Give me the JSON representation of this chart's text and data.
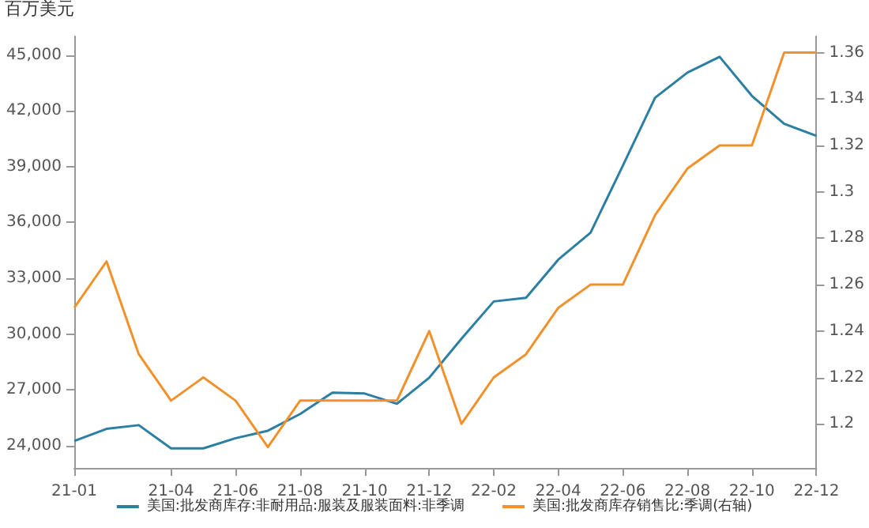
{
  "chart_data": {
    "type": "line",
    "ylabel": "百万美元",
    "categories": [
      "21-01",
      null,
      null,
      "21-04",
      null,
      "21-06",
      null,
      "21-08",
      null,
      "21-10",
      null,
      "21-12",
      null,
      "22-02",
      null,
      "22-04",
      null,
      "22-06",
      null,
      "22-08",
      null,
      "22-10",
      null,
      "22-12"
    ],
    "series": [
      {
        "name": "美国:批发商库存:非耐用品:服装及服装面料:非季调",
        "color": "#2b7fa3",
        "values": [
          24250,
          24900,
          25100,
          23850,
          23850,
          24400,
          24800,
          25700,
          26850,
          26800,
          26250,
          27650,
          29750,
          31750,
          31950,
          34000,
          35450,
          39050,
          42700,
          44050,
          44900,
          42800,
          41300,
          40650
        ]
      },
      {
        "name": "美国:批发商库存销售比:季调(右轴)",
        "color": "#f0912c",
        "axis": "y2",
        "values": [
          1.25,
          1.27,
          1.23,
          1.21,
          1.22,
          1.21,
          1.19,
          1.21,
          1.21,
          1.21,
          1.21,
          1.24,
          1.2,
          1.22,
          1.23,
          1.25,
          1.26,
          1.26,
          1.29,
          1.31,
          1.32,
          1.32,
          1.36,
          1.36
        ]
      }
    ],
    "ylim": [
      22800,
      46000
    ],
    "yticks": [
      {
        "value": 24000,
        "label": "24,000"
      },
      {
        "value": 27000,
        "label": "27,000"
      },
      {
        "value": 30000,
        "label": "30,000"
      },
      {
        "value": 33000,
        "label": "33,000"
      },
      {
        "value": 36000,
        "label": "36,000"
      },
      {
        "value": 39000,
        "label": "39,000"
      },
      {
        "value": 42000,
        "label": "42,000"
      },
      {
        "value": 45000,
        "label": "45,000"
      }
    ],
    "y2lim": [
      1.181,
      1.367
    ],
    "y2ticks": [
      1.2,
      1.22,
      1.24,
      1.26,
      1.28,
      1.3,
      1.32,
      1.34,
      1.36
    ],
    "legend": "bottom",
    "grid": false,
    "marker": "none",
    "line_style": "solid"
  }
}
